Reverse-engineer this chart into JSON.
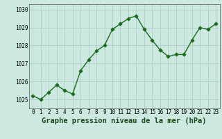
{
  "x": [
    0,
    1,
    2,
    3,
    4,
    5,
    6,
    7,
    8,
    9,
    10,
    11,
    12,
    13,
    14,
    15,
    16,
    17,
    18,
    19,
    20,
    21,
    22,
    23
  ],
  "y": [
    1025.2,
    1025.0,
    1025.4,
    1025.8,
    1025.5,
    1025.3,
    1026.6,
    1027.2,
    1027.7,
    1028.0,
    1028.9,
    1029.2,
    1029.5,
    1029.65,
    1028.9,
    1028.3,
    1027.75,
    1027.4,
    1027.5,
    1027.5,
    1028.3,
    1029.0,
    1028.9,
    1029.2
  ],
  "line_color": "#1a6b1a",
  "marker_color": "#1a6b1a",
  "bg_color": "#cce8e0",
  "grid_color": "#aacfc8",
  "xlabel": "Graphe pression niveau de la mer (hPa)",
  "ylim": [
    1024.5,
    1030.3
  ],
  "xlim": [
    -0.5,
    23.5
  ],
  "yticks": [
    1025,
    1026,
    1027,
    1028,
    1029,
    1030
  ],
  "xticks": [
    0,
    1,
    2,
    3,
    4,
    5,
    6,
    7,
    8,
    9,
    10,
    11,
    12,
    13,
    14,
    15,
    16,
    17,
    18,
    19,
    20,
    21,
    22,
    23
  ],
  "tick_fontsize": 5.5,
  "xlabel_fontsize": 7.5,
  "line_width": 1.0,
  "marker_size": 2.8
}
